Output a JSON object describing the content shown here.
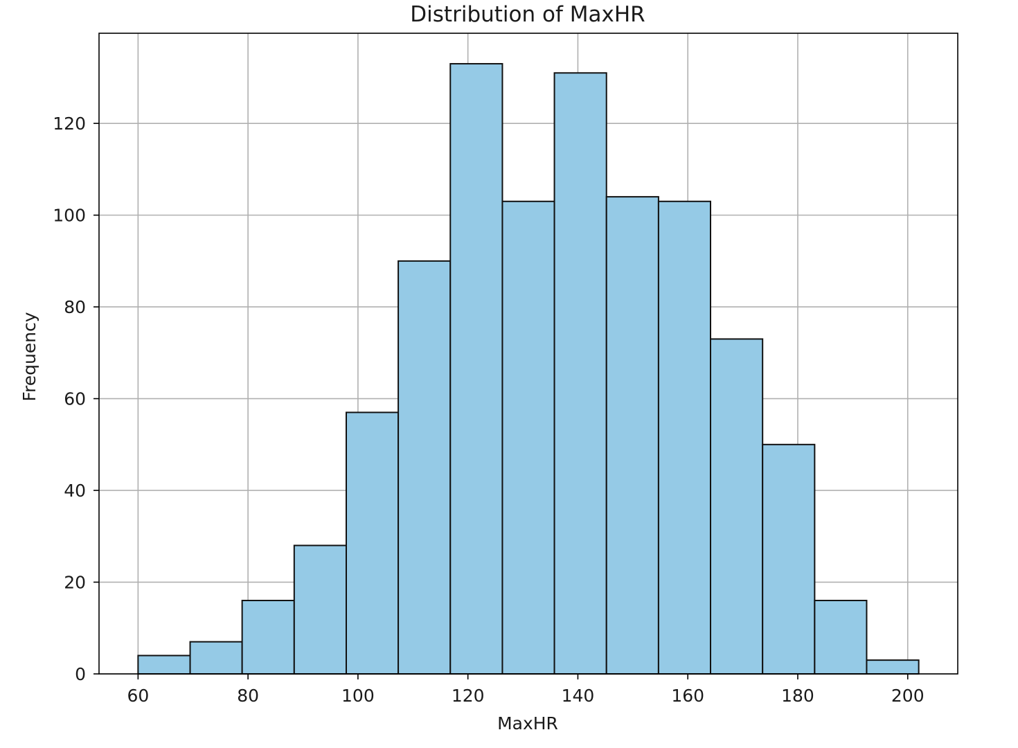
{
  "chart_data": {
    "type": "bar",
    "title": "Distribution of MaxHR",
    "xlabel": "MaxHR",
    "ylabel": "Frequency",
    "bin_edges": [
      60,
      69.47,
      78.93,
      88.4,
      97.87,
      107.33,
      116.8,
      126.27,
      135.73,
      145.2,
      154.67,
      164.13,
      173.6,
      183.07,
      192.53,
      202
    ],
    "values": [
      4,
      7,
      16,
      28,
      57,
      90,
      133,
      103,
      131,
      104,
      103,
      73,
      50,
      16,
      3
    ],
    "xlim": [
      52.9,
      209.1
    ],
    "ylim": [
      0,
      139.65
    ],
    "xticks": [
      60,
      80,
      100,
      120,
      140,
      160,
      180,
      200
    ],
    "yticks": [
      0,
      20,
      40,
      60,
      80,
      100,
      120
    ],
    "grid": true,
    "legend": "none",
    "colors": {
      "bar_fill": "#95cae6",
      "bar_edge": "#111111",
      "grid": "#b0b0b0",
      "axes": "#000000"
    }
  }
}
